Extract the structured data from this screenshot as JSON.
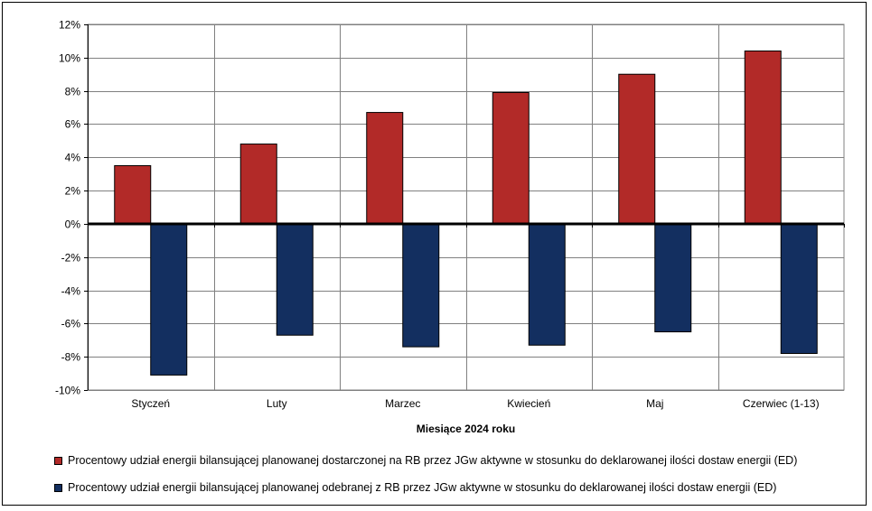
{
  "chart_data": {
    "type": "bar",
    "categories": [
      "Styczeń",
      "Luty",
      "Marzec",
      "Kwiecień",
      "Maj",
      "Czerwiec (1-13)"
    ],
    "series": [
      {
        "name": "Procentowy udział energii bilansującej planowanej dostarczonej na RB przez JGw aktywne w stosunku do deklarowanej ilości dostaw energii (ED)",
        "color": "#b22a28",
        "values": [
          3.5,
          4.8,
          6.7,
          7.9,
          9.0,
          10.4
        ]
      },
      {
        "name": "Procentowy udział energii bilansującej planowanej odebranej z RB przez JGw aktywne w stosunku do deklarowanej ilości dostaw energii (ED)",
        "color": "#132f60",
        "values": [
          -9.1,
          -6.7,
          -7.4,
          -7.3,
          -6.5,
          -7.8
        ]
      }
    ],
    "xlabel": "Miesiące 2024  roku",
    "ylabel": "",
    "ylim": [
      -10,
      12
    ],
    "yticks": [
      12,
      10,
      8,
      6,
      4,
      2,
      0,
      -2,
      -4,
      -6,
      -8,
      -10
    ],
    "ytick_labels": [
      "12%",
      "10%",
      "8%",
      "6%",
      "4%",
      "2%",
      "0%",
      "-2%",
      "-4%",
      "-6%",
      "-8%",
      "-10%"
    ],
    "grid": true,
    "legend_position": "bottom"
  }
}
